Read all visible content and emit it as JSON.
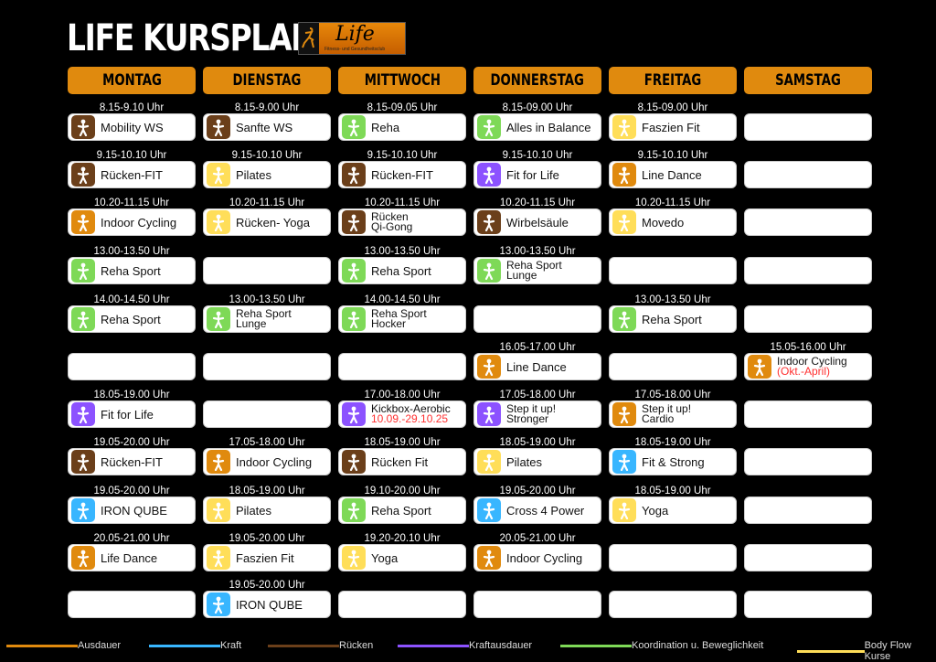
{
  "header": {
    "title": "LIFE KURSPLAN",
    "logo_text": "Life",
    "logo_subtitle": "Fitness- und Gesundheitsclub"
  },
  "colors": {
    "Ausdauer": "#e08a0e",
    "Kraft": "#38b6ff",
    "Rücken": "#6b3f1a",
    "Kraftausdauer": "#8c52ff",
    "Koordination": "#7ed957",
    "BodyFlow": "#ffde59"
  },
  "days": [
    {
      "name": "MONTAG",
      "slots": [
        {
          "time": "8.15-9.10 Uhr",
          "title": "Mobility WS",
          "cat": "Rücken",
          "icon": "back-hands-icon"
        },
        {
          "time": "9.15-10.10 Uhr",
          "title": "Rücken-FIT",
          "cat": "Rücken",
          "icon": "back-icon"
        },
        {
          "time": "10.20-11.15 Uhr",
          "title": "Indoor Cycling",
          "cat": "Ausdauer",
          "icon": "bicycle-icon"
        },
        {
          "time": "13.00-13.50 Uhr",
          "title": "Reha Sport",
          "cat": "Koordination",
          "icon": "stretch-icon"
        },
        {
          "time": "14.00-14.50 Uhr",
          "title": "Reha Sport",
          "cat": "Koordination",
          "icon": "stretch-icon"
        },
        {},
        {
          "time": "18.05-19.00 Uhr",
          "title": "Fit for Life",
          "cat": "Kraftausdauer",
          "icon": "jumping-icon"
        },
        {
          "time": "19.05-20.00 Uhr",
          "title": "Rücken-FIT",
          "cat": "Rücken",
          "icon": "back-icon"
        },
        {
          "time": "19.05-20.00 Uhr",
          "title": "IRON QUBE",
          "cat": "Kraft",
          "icon": "strength-icon"
        },
        {
          "time": "20.05-21.00 Uhr",
          "title": "Life Dance",
          "cat": "Ausdauer",
          "icon": "dance-icon"
        },
        {}
      ]
    },
    {
      "name": "DIENSTAG",
      "slots": [
        {
          "time": "8.15-9.00 Uhr",
          "title": "Sanfte WS",
          "cat": "Rücken",
          "icon": "back-hands-icon"
        },
        {
          "time": "9.15-10.10 Uhr",
          "title": "Pilates",
          "cat": "BodyFlow",
          "icon": "pilates-icon"
        },
        {
          "time": "10.20-11.15 Uhr",
          "title": "Rücken- Yoga",
          "cat": "BodyFlow",
          "icon": "yoga-icon"
        },
        {},
        {
          "time": "13.00-13.50 Uhr",
          "title": "Reha Sport",
          "title2": "Lunge",
          "cat": "Koordination",
          "icon": "stretch-icon"
        },
        {},
        {},
        {
          "time": "17.05-18.00 Uhr",
          "title": "Indoor Cycling",
          "cat": "Ausdauer",
          "icon": "bicycle-icon"
        },
        {
          "time": "18.05-19.00 Uhr",
          "title": "Pilates",
          "cat": "BodyFlow",
          "icon": "pilates-icon"
        },
        {
          "time": "19.05-20.00 Uhr",
          "title": "Faszien Fit",
          "cat": "BodyFlow",
          "icon": "roller-icon"
        },
        {
          "time": "19.05-20.00 Uhr",
          "title": "IRON QUBE",
          "cat": "Kraft",
          "icon": "strength-icon"
        }
      ]
    },
    {
      "name": "MITTWOCH",
      "slots": [
        {
          "time": "8.15-09.05 Uhr",
          "title": "Reha",
          "cat": "Koordination",
          "icon": "stretch-icon"
        },
        {
          "time": "9.15-10.10 Uhr",
          "title": "Rücken-FIT",
          "cat": "Rücken",
          "icon": "back-icon"
        },
        {
          "time": "10.20-11.15 Uhr",
          "title": "Rücken",
          "title2": "Qi-Gong",
          "cat": "Rücken",
          "icon": "back-icon"
        },
        {
          "time": "13.00-13.50 Uhr",
          "title": "Reha Sport",
          "cat": "Koordination",
          "icon": "stretch-icon"
        },
        {
          "time": "14.00-14.50 Uhr",
          "title": "Reha Sport",
          "title2": "Hocker",
          "cat": "Koordination",
          "icon": "stretch-icon"
        },
        {},
        {
          "time": "17.00-18.00 Uhr",
          "title": "Kickbox-Aerobic",
          "note": "10.09.-29.10.25",
          "cat": "Kraftausdauer",
          "icon": "kick-icon"
        },
        {
          "time": "18.05-19.00 Uhr",
          "title": "Rücken Fit",
          "cat": "Rücken",
          "icon": "back-icon"
        },
        {
          "time": "19.10-20.00 Uhr",
          "title": "Reha Sport",
          "cat": "Koordination",
          "icon": "stretch-icon"
        },
        {
          "time": "19.20-20.10 Uhr",
          "title": "Yoga",
          "cat": "BodyFlow",
          "icon": "yoga-icon"
        },
        {}
      ]
    },
    {
      "name": "DONNERSTAG",
      "slots": [
        {
          "time": "8.15-09.00 Uhr",
          "title": "Alles in Balance",
          "cat": "Koordination",
          "icon": "balance-icon"
        },
        {
          "time": "9.15-10.10 Uhr",
          "title": "Fit for Life",
          "cat": "Kraftausdauer",
          "icon": "jumping-icon"
        },
        {
          "time": "10.20-11.15 Uhr",
          "title": "Wirbelsäule",
          "cat": "Rücken",
          "icon": "back-hands-icon"
        },
        {
          "time": "13.00-13.50 Uhr",
          "title": "Reha Sport",
          "title2": "Lunge",
          "cat": "Koordination",
          "icon": "stretch-icon"
        },
        {},
        {
          "time": "16.05-17.00 Uhr",
          "title": "Line Dance",
          "cat": "Ausdauer",
          "icon": "dance-icon"
        },
        {
          "time": "17.05-18.00 Uhr",
          "title": "Step it up!",
          "title2": "Stronger",
          "cat": "Kraftausdauer",
          "icon": "step-icon"
        },
        {
          "time": "18.05-19.00 Uhr",
          "title": "Pilates",
          "cat": "BodyFlow",
          "icon": "pilates-icon"
        },
        {
          "time": "19.05-20.00 Uhr",
          "title": "Cross 4 Power",
          "cat": "Kraft",
          "icon": "muscle-icon"
        },
        {
          "time": "20.05-21.00 Uhr",
          "title": "Indoor Cycling",
          "cat": "Ausdauer",
          "icon": "bicycle-icon"
        },
        {}
      ]
    },
    {
      "name": "FREITAG",
      "slots": [
        {
          "time": "8.15-09.00 Uhr",
          "title": "Faszien Fit",
          "cat": "BodyFlow",
          "icon": "roller-icon"
        },
        {
          "time": "9.15-10.10 Uhr",
          "title": "Line Dance",
          "cat": "Ausdauer",
          "icon": "dance-icon"
        },
        {
          "time": "10.20-11.15 Uhr",
          "title": "Movedo",
          "cat": "BodyFlow",
          "icon": "pilates-icon"
        },
        {},
        {
          "time": "13.00-13.50 Uhr",
          "title": "Reha Sport",
          "cat": "Koordination",
          "icon": "stretch-icon"
        },
        {},
        {
          "time": "17.05-18.00 Uhr",
          "title": "Step it up!",
          "title2": "Cardio",
          "cat": "Ausdauer",
          "icon": "step-icon"
        },
        {
          "time": "18.05-19.00 Uhr",
          "title": "Fit & Strong",
          "cat": "Kraft",
          "icon": "squat-icon"
        },
        {
          "time": "18.05-19.00 Uhr",
          "title": "Yoga",
          "cat": "BodyFlow",
          "icon": "yoga-icon"
        },
        {},
        {}
      ]
    },
    {
      "name": "SAMSTAG",
      "slots": [
        {},
        {},
        {},
        {},
        {},
        {
          "time": "15.05-16.00 Uhr",
          "title": "Indoor Cycling",
          "note": "(Okt.-April)",
          "cat": "Ausdauer",
          "icon": "bicycle-icon"
        },
        {},
        {},
        {},
        {},
        {}
      ]
    }
  ],
  "legend": [
    {
      "label": "Ausdauer",
      "cat": "Ausdauer"
    },
    {
      "label": "Kraft",
      "cat": "Kraft"
    },
    {
      "label": "Rücken",
      "cat": "Rücken"
    },
    {
      "label": "Kraftausdauer",
      "cat": "Kraftausdauer"
    },
    {
      "label": "Koordination u. Beweglichkeit",
      "cat": "Koordination"
    },
    {
      "label": "Body Flow Kurse",
      "cat": "BodyFlow"
    }
  ]
}
